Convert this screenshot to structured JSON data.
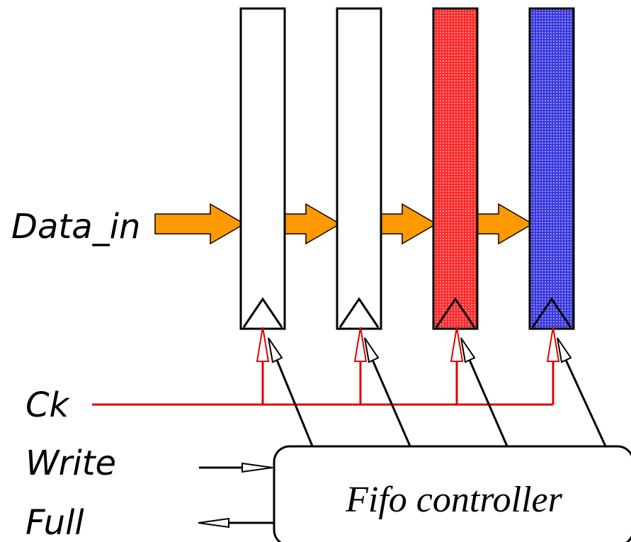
{
  "labels": {
    "data_in": "Data_in",
    "ck": "Ck",
    "write": "Write",
    "full": "Full",
    "controller": "Fifo controller"
  },
  "registers": [
    {
      "fill": "#ffffff",
      "pattern": "none"
    },
    {
      "fill": "#ffffff",
      "pattern": "none"
    },
    {
      "fill": "#ff2a2a",
      "pattern": "dots"
    },
    {
      "fill": "#3a3ae0",
      "pattern": "dots"
    }
  ],
  "colors": {
    "data_arrow": "#ff9900",
    "clock_line": "#e00000",
    "stroke": "#000000"
  }
}
